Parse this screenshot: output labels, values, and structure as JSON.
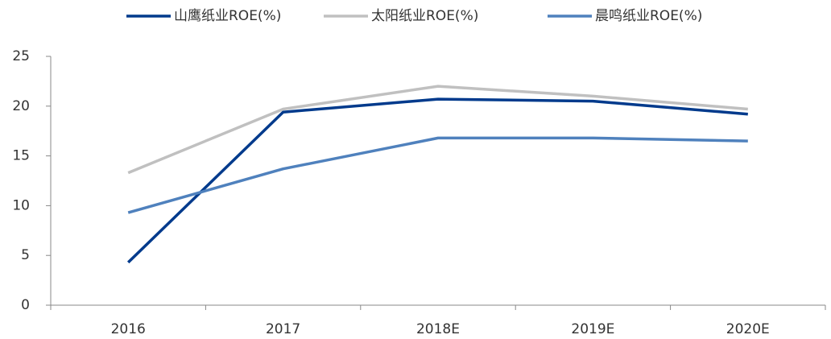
{
  "chart_data": {
    "type": "line",
    "categories": [
      "2016",
      "2017",
      "2018E",
      "2019E",
      "2020E"
    ],
    "series": [
      {
        "name": "山鹰纸业ROE(%)",
        "color": "#003a8c",
        "values": [
          4.3,
          19.4,
          20.7,
          20.5,
          19.2
        ]
      },
      {
        "name": "太阳纸业ROE(%)",
        "color": "#c0c0c0",
        "values": [
          13.3,
          19.7,
          22.0,
          21.0,
          19.7
        ]
      },
      {
        "name": "晨鸣纸业ROE(%)",
        "color": "#4f81bd",
        "values": [
          9.3,
          13.7,
          16.8,
          16.8,
          16.5
        ]
      }
    ],
    "ylim": [
      0,
      25
    ],
    "yticks": [
      0,
      5,
      10,
      15,
      20,
      25
    ],
    "grid": false
  }
}
